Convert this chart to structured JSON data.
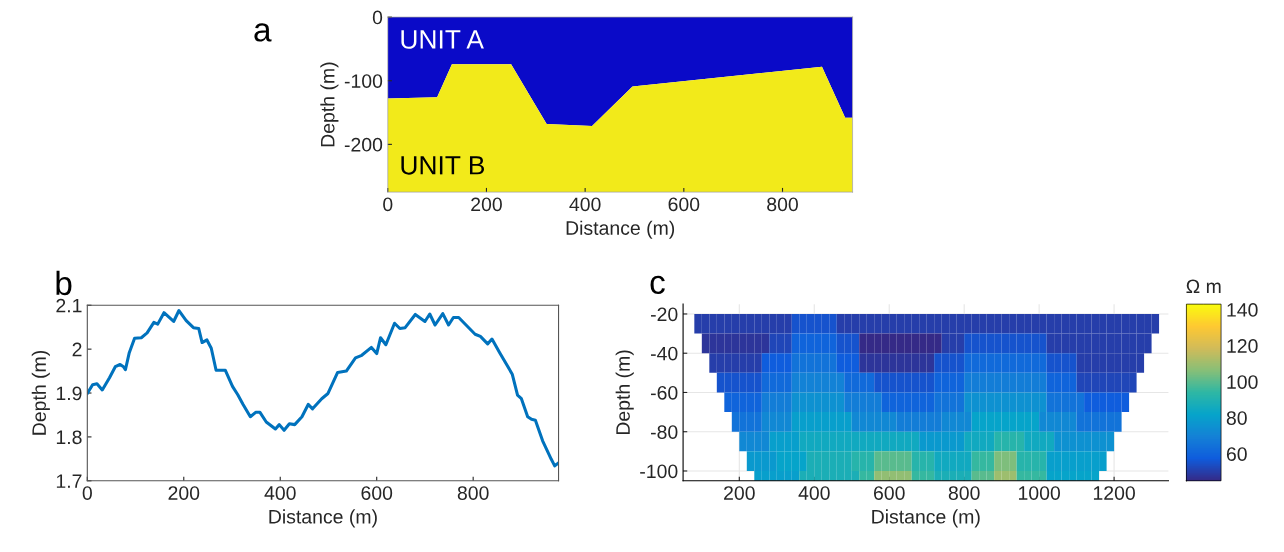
{
  "chart_data": [
    {
      "type": "area",
      "title": "a",
      "xlabel": "Distance (m)",
      "ylabel": "Depth (m)",
      "xlim": [
        0,
        942
      ],
      "ylim": [
        -275,
        0
      ],
      "xticks": [
        0,
        200,
        400,
        600,
        800
      ],
      "yticks": [
        -200,
        -100,
        0
      ],
      "grid": false,
      "stacked": true,
      "annotations": [
        "UNIT A",
        "UNIT B"
      ],
      "x": [
        0,
        100,
        130,
        250,
        322,
        414,
        496,
        880,
        927,
        942
      ],
      "series": [
        {
          "color": "#0a0ac8",
          "values": [
            -128,
            -126,
            -74,
            -74,
            -168,
            -171,
            -109,
            -78,
            -158,
            -158
          ]
        },
        {
          "color": "#f2ea1a",
          "values": [
            -147,
            -149,
            -201,
            -201,
            -107,
            -104,
            -166,
            -197,
            -117,
            -117
          ]
        }
      ]
    },
    {
      "type": "line",
      "title": "b",
      "xlabel": "Distance (m)",
      "ylabel": "Depth (m)",
      "xlim": [
        0,
        977
      ],
      "ylim": [
        1.7,
        2.1
      ],
      "xticks": [
        0,
        200,
        400,
        600,
        800
      ],
      "yticks": [
        1.7,
        1.8,
        1.9,
        2,
        2.1
      ],
      "grid": false,
      "marker": "none",
      "line_style": "solid",
      "x": [
        0,
        11,
        20,
        31,
        46,
        58,
        68,
        75,
        79,
        87,
        98,
        112,
        124,
        138,
        146,
        159,
        179,
        190,
        205,
        220,
        231,
        238,
        248,
        257,
        267,
        286,
        301,
        312,
        323,
        338,
        349,
        358,
        371,
        390,
        398,
        408,
        419,
        430,
        445,
        458,
        467,
        486,
        499,
        519,
        537,
        556,
        569,
        589,
        600,
        608,
        619,
        637,
        648,
        659,
        680,
        700,
        710,
        721,
        737,
        749,
        759,
        770,
        804,
        815,
        830,
        839,
        855,
        881,
        892,
        900,
        913,
        921,
        929,
        944,
        962,
        969,
        977
      ],
      "series": [
        {
          "color": "#0072bd",
          "values": [
            1.899,
            1.919,
            1.921,
            1.907,
            1.935,
            1.96,
            1.965,
            1.96,
            1.953,
            1.992,
            2.025,
            2.026,
            2.037,
            2.061,
            2.057,
            2.083,
            2.063,
            2.088,
            2.065,
            2.049,
            2.047,
            2.015,
            2.021,
            2.002,
            1.952,
            1.952,
            1.915,
            1.896,
            1.874,
            1.846,
            1.856,
            1.856,
            1.834,
            1.818,
            1.828,
            1.815,
            1.83,
            1.828,
            1.846,
            1.874,
            1.864,
            1.887,
            1.899,
            1.947,
            1.95,
            1.98,
            1.986,
            2.004,
            1.99,
            2.026,
            2.01,
            2.059,
            2.047,
            2.049,
            2.079,
            2.063,
            2.08,
            2.055,
            2.081,
            2.055,
            2.072,
            2.072,
            2.034,
            2.029,
            2.012,
            2.023,
            1.992,
            1.943,
            1.895,
            1.887,
            1.846,
            1.84,
            1.838,
            1.791,
            1.749,
            1.734,
            1.741
          ]
        }
      ]
    },
    {
      "type": "heatmap",
      "title": "c",
      "xlabel": "Distance (m)",
      "ylabel": "Depth (m)",
      "clabel": "Ω m",
      "xlim": [
        50,
        1345
      ],
      "ylim": [
        -105,
        -15
      ],
      "xticks": [
        200,
        400,
        600,
        800,
        1000,
        1200
      ],
      "yticks": [
        -100,
        -80,
        -60,
        -40,
        -20
      ],
      "grid": true,
      "clim": [
        45,
        143
      ],
      "cticks": [
        60,
        80,
        100,
        120,
        140
      ],
      "x": [
        90,
        110,
        130,
        150,
        170,
        190,
        210,
        230,
        250,
        270,
        290,
        310,
        330,
        350,
        370,
        390,
        410,
        430,
        450,
        470,
        490,
        510,
        530,
        550,
        570,
        590,
        610,
        630,
        650,
        670,
        690,
        710,
        730,
        750,
        770,
        790,
        810,
        830,
        850,
        870,
        890,
        910,
        930,
        950,
        970,
        990,
        1010,
        1030,
        1050,
        1070,
        1090,
        1110,
        1130,
        1150,
        1170,
        1190,
        1210,
        1230,
        1250,
        1270,
        1290,
        1310
      ],
      "y": [
        -25,
        -35,
        -45,
        -55,
        -65,
        -75,
        -85,
        -95,
        -105
      ],
      "cells": [
        [
          50,
          50,
          50,
          50,
          50,
          50,
          50,
          50,
          50,
          50,
          50,
          50,
          50,
          55,
          55,
          55,
          55,
          55,
          55,
          50,
          50,
          50,
          50,
          50,
          50,
          50,
          50,
          50,
          50,
          50,
          50,
          50,
          50,
          50,
          50,
          50,
          50,
          50,
          50,
          50,
          50,
          50,
          50,
          50,
          50,
          50,
          50,
          50,
          50,
          50,
          50,
          50,
          50,
          50,
          50,
          50,
          50,
          50,
          50,
          50,
          50,
          50
        ],
        [
          null,
          48,
          48,
          48,
          48,
          48,
          48,
          48,
          48,
          48,
          52,
          52,
          52,
          60,
          60,
          60,
          60,
          60,
          60,
          55,
          55,
          55,
          45,
          45,
          45,
          45,
          45,
          45,
          45,
          45,
          45,
          45,
          45,
          50,
          50,
          50,
          55,
          55,
          55,
          55,
          55,
          55,
          55,
          55,
          55,
          55,
          55,
          50,
          50,
          50,
          50,
          50,
          50,
          50,
          50,
          50,
          50,
          50,
          50,
          50,
          50,
          null
        ],
        [
          null,
          null,
          50,
          50,
          50,
          50,
          50,
          50,
          50,
          58,
          58,
          58,
          58,
          65,
          65,
          65,
          65,
          65,
          65,
          58,
          58,
          58,
          48,
          48,
          48,
          48,
          48,
          48,
          48,
          48,
          48,
          48,
          55,
          55,
          55,
          55,
          62,
          62,
          62,
          62,
          62,
          62,
          62,
          62,
          62,
          62,
          62,
          55,
          55,
          55,
          55,
          50,
          50,
          50,
          50,
          50,
          50,
          50,
          50,
          50,
          null,
          null
        ],
        [
          null,
          null,
          null,
          55,
          55,
          55,
          55,
          55,
          55,
          62,
          62,
          62,
          62,
          70,
          70,
          70,
          70,
          70,
          70,
          70,
          62,
          62,
          62,
          62,
          55,
          55,
          55,
          55,
          55,
          55,
          55,
          55,
          60,
          60,
          60,
          60,
          68,
          68,
          68,
          68,
          68,
          68,
          68,
          68,
          68,
          68,
          68,
          60,
          60,
          60,
          60,
          52,
          52,
          52,
          52,
          52,
          52,
          52,
          52,
          null,
          null,
          null
        ],
        [
          null,
          null,
          null,
          null,
          60,
          60,
          60,
          60,
          60,
          68,
          68,
          68,
          68,
          75,
          75,
          75,
          75,
          75,
          75,
          75,
          68,
          68,
          68,
          68,
          68,
          60,
          60,
          60,
          60,
          60,
          60,
          60,
          65,
          65,
          65,
          65,
          75,
          75,
          75,
          75,
          75,
          75,
          75,
          75,
          75,
          75,
          75,
          65,
          65,
          65,
          65,
          65,
          58,
          58,
          58,
          58,
          58,
          58,
          null,
          null,
          null,
          null
        ],
        [
          null,
          null,
          null,
          null,
          null,
          65,
          65,
          65,
          65,
          72,
          72,
          72,
          72,
          80,
          80,
          80,
          80,
          80,
          80,
          80,
          80,
          72,
          72,
          72,
          72,
          72,
          72,
          68,
          68,
          68,
          68,
          68,
          68,
          72,
          72,
          72,
          72,
          82,
          82,
          82,
          82,
          82,
          82,
          82,
          82,
          82,
          72,
          72,
          72,
          72,
          72,
          65,
          65,
          65,
          65,
          65,
          65,
          null,
          null,
          null,
          null,
          null
        ],
        [
          null,
          null,
          null,
          null,
          null,
          null,
          72,
          72,
          72,
          72,
          80,
          80,
          80,
          80,
          85,
          85,
          85,
          85,
          85,
          85,
          85,
          85,
          85,
          85,
          85,
          85,
          85,
          85,
          85,
          85,
          78,
          78,
          78,
          78,
          78,
          78,
          85,
          85,
          85,
          85,
          92,
          92,
          92,
          92,
          85,
          85,
          85,
          85,
          75,
          75,
          75,
          75,
          75,
          75,
          75,
          75,
          null,
          null,
          null,
          null,
          null,
          null
        ],
        [
          null,
          null,
          null,
          null,
          null,
          null,
          null,
          78,
          78,
          78,
          78,
          82,
          82,
          82,
          82,
          88,
          88,
          88,
          88,
          88,
          88,
          92,
          92,
          92,
          100,
          100,
          100,
          100,
          100,
          92,
          92,
          92,
          85,
          85,
          85,
          85,
          85,
          95,
          95,
          95,
          105,
          105,
          105,
          92,
          92,
          92,
          92,
          80,
          80,
          80,
          80,
          80,
          80,
          80,
          80,
          null,
          null,
          null,
          null,
          null,
          null,
          null
        ],
        [
          null,
          null,
          null,
          null,
          null,
          null,
          null,
          null,
          80,
          80,
          80,
          80,
          80,
          80,
          88,
          88,
          88,
          88,
          88,
          88,
          88,
          88,
          95,
          95,
          108,
          108,
          108,
          108,
          108,
          95,
          95,
          95,
          88,
          88,
          88,
          88,
          88,
          100,
          100,
          100,
          110,
          110,
          110,
          95,
          95,
          95,
          95,
          82,
          82,
          82,
          82,
          82,
          82,
          82,
          null,
          null,
          null,
          null,
          null,
          null,
          null,
          null
        ]
      ]
    }
  ]
}
